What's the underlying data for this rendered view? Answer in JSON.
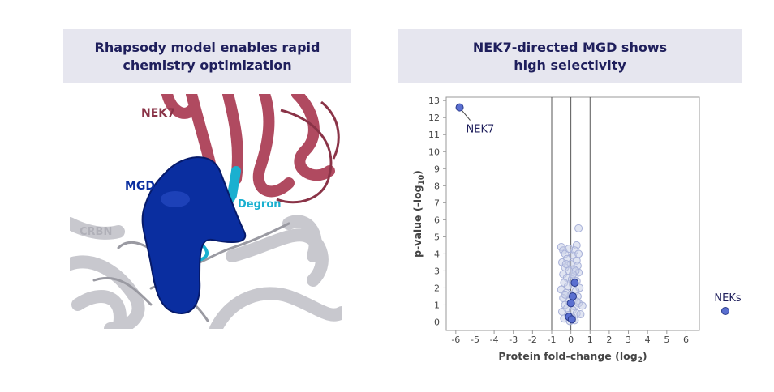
{
  "left_panel": {
    "title_line1": "Rhapsody model enables rapid",
    "title_line2": "chemistry optimization",
    "labels": {
      "nek7": "NEK7",
      "mgd": "MGD",
      "degron": "Degron",
      "crbn": "CRBN"
    },
    "colors": {
      "nek7": "#b04a60",
      "mgd": "#0a2ea0",
      "degron": "#1ab0d0",
      "crbn": "#c8c8ce"
    }
  },
  "right_panel": {
    "title_line1": "NEK7-directed MGD shows",
    "title_line2": "high selectivity"
  },
  "chart_data": {
    "type": "scatter",
    "xlabel": "Protein fold-change (log",
    "xlabel_sub": "2",
    "xlabel_end": ")",
    "ylabel": "p-value (-log",
    "ylabel_sub": "10",
    "ylabel_end": ")",
    "xlim": [
      -6.5,
      6.7
    ],
    "ylim": [
      -0.5,
      13.2
    ],
    "x_ticks": [
      -6,
      -5,
      -4,
      -3,
      -2,
      -1,
      0,
      1,
      2,
      3,
      4,
      5,
      6
    ],
    "y_ticks": [
      0,
      1,
      2,
      3,
      4,
      5,
      6,
      7,
      8,
      9,
      10,
      11,
      12,
      13
    ],
    "reference_lines": {
      "vertical": [
        -1,
        0,
        1
      ],
      "horizontal": [
        2
      ]
    },
    "grid": false,
    "colors": {
      "background_proteins": "#c9cfe8",
      "nek_proteins": "#5a6fd0",
      "nek_edge": "#2a3a8a"
    },
    "annotations": [
      {
        "text": "NEK7",
        "x": -5.7,
        "y": 12.6
      },
      {
        "text": "NEKs",
        "legend": true
      }
    ],
    "series": [
      {
        "name": "NEKs",
        "points": [
          [
            -5.8,
            12.6
          ],
          [
            0.2,
            2.3
          ],
          [
            0.1,
            1.5
          ],
          [
            0.0,
            1.1
          ],
          [
            -0.1,
            0.3
          ],
          [
            0.05,
            0.15
          ]
        ]
      },
      {
        "points": [
          [
            0.4,
            5.5
          ],
          [
            -0.5,
            4.4
          ],
          [
            -0.4,
            4.2
          ],
          [
            0.3,
            4.5
          ],
          [
            0.2,
            4.2
          ],
          [
            -0.3,
            4.0
          ],
          [
            0.1,
            3.9
          ],
          [
            -0.2,
            3.7
          ],
          [
            0.3,
            3.6
          ],
          [
            -0.45,
            3.5
          ],
          [
            0.0,
            3.4
          ],
          [
            0.35,
            3.3
          ],
          [
            -0.3,
            3.2
          ],
          [
            0.15,
            3.1
          ],
          [
            -0.1,
            3.0
          ],
          [
            0.4,
            2.9
          ],
          [
            -0.4,
            2.8
          ],
          [
            0.2,
            2.7
          ],
          [
            -0.2,
            2.6
          ],
          [
            0.05,
            2.5
          ],
          [
            0.3,
            2.4
          ],
          [
            -0.35,
            2.3
          ],
          [
            0.1,
            2.2
          ],
          [
            -0.15,
            2.1
          ],
          [
            0.45,
            2.0
          ],
          [
            -0.5,
            1.9
          ],
          [
            0.25,
            1.8
          ],
          [
            -0.25,
            1.7
          ],
          [
            0.0,
            1.6
          ],
          [
            0.35,
            1.5
          ],
          [
            -0.4,
            1.4
          ],
          [
            0.15,
            1.3
          ],
          [
            -0.1,
            1.2
          ],
          [
            0.4,
            1.1
          ],
          [
            -0.3,
            1.0
          ],
          [
            0.2,
            0.9
          ],
          [
            -0.2,
            0.8
          ],
          [
            0.6,
            0.95
          ],
          [
            0.1,
            0.7
          ],
          [
            -0.45,
            0.6
          ],
          [
            0.3,
            0.5
          ],
          [
            -0.15,
            0.4
          ],
          [
            0.05,
            0.3
          ],
          [
            0.5,
            0.45
          ],
          [
            -0.35,
            0.2
          ],
          [
            0.2,
            0.1
          ],
          [
            -0.05,
            0.05
          ],
          [
            0.25,
            3.0
          ],
          [
            -0.25,
            3.4
          ],
          [
            0.4,
            4.0
          ],
          [
            -0.1,
            4.3
          ],
          [
            0.1,
            2.8
          ],
          [
            -0.3,
            1.6
          ],
          [
            0.3,
            1.2
          ]
        ]
      }
    ]
  }
}
